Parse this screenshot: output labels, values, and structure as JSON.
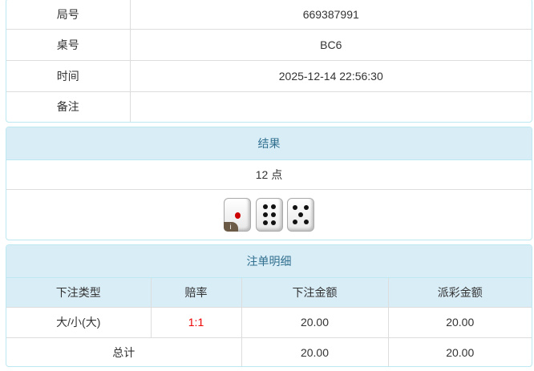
{
  "info": {
    "rows": [
      {
        "label": "局号",
        "value": "669387991"
      },
      {
        "label": "桌号",
        "value": "BC6"
      },
      {
        "label": "时间",
        "value": "2025-12-14 22:56:30"
      },
      {
        "label": "备注",
        "value": ""
      }
    ]
  },
  "result": {
    "title": "结果",
    "points": "12 点",
    "dice": [
      1,
      6,
      5
    ],
    "info_badge": "i"
  },
  "bets": {
    "title": "注单明细",
    "headers": [
      "下注类型",
      "赔率",
      "下注金额",
      "派彩金额"
    ],
    "rows": [
      {
        "type": "大/小(大)",
        "odds": "1:1",
        "amount": "20.00",
        "payout": "20.00"
      }
    ],
    "total": {
      "label": "总计",
      "amount": "20.00",
      "payout": "20.00"
    }
  },
  "colors": {
    "header_bg": "#d9edf7",
    "header_text": "#31708f",
    "odds": "#ee0000"
  }
}
